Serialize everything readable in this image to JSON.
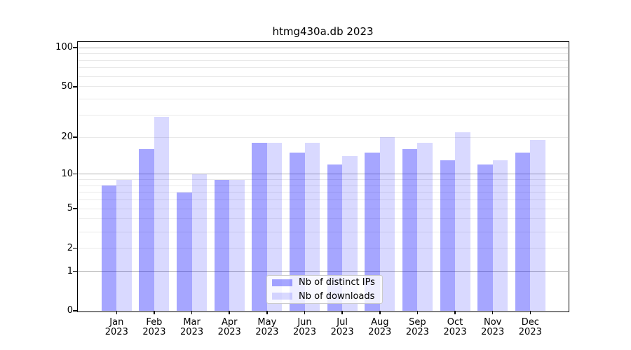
{
  "chart_data": {
    "type": "bar",
    "title": "htmg430a.db 2023",
    "categories": [
      {
        "month": "Jan",
        "year": "2023"
      },
      {
        "month": "Feb",
        "year": "2023"
      },
      {
        "month": "Mar",
        "year": "2023"
      },
      {
        "month": "Apr",
        "year": "2023"
      },
      {
        "month": "May",
        "year": "2023"
      },
      {
        "month": "Jun",
        "year": "2023"
      },
      {
        "month": "Jul",
        "year": "2023"
      },
      {
        "month": "Aug",
        "year": "2023"
      },
      {
        "month": "Sep",
        "year": "2023"
      },
      {
        "month": "Oct",
        "year": "2023"
      },
      {
        "month": "Nov",
        "year": "2023"
      },
      {
        "month": "Dec",
        "year": "2023"
      }
    ],
    "series": [
      {
        "name": "Nb of distinct IPs",
        "color": "rgba(0,0,255,0.35)",
        "values": [
          8,
          16,
          7,
          9,
          18,
          15,
          12,
          15,
          16,
          13,
          12,
          15
        ]
      },
      {
        "name": "Nb of downloads",
        "color": "rgba(0,0,255,0.15)",
        "values": [
          9,
          29,
          10,
          9,
          18,
          18,
          14,
          20,
          18,
          22,
          13,
          19
        ]
      }
    ],
    "y_axis": {
      "scale": "log10(value+1)",
      "tick_values": [
        100,
        50,
        20,
        10,
        5,
        2,
        1,
        0
      ],
      "top_value": 110
    },
    "grid": {
      "minor_values": [
        2,
        3,
        4,
        5,
        6,
        7,
        8,
        9,
        20,
        30,
        40,
        50,
        60,
        70,
        80,
        90
      ],
      "major_values": [
        1,
        10,
        100
      ],
      "minor_color": "#e9e9e9",
      "major_color": "#b3b3b3"
    },
    "legend": {
      "position": "lower center"
    },
    "background_color": "#ffffff",
    "frame_color": "#000000"
  }
}
